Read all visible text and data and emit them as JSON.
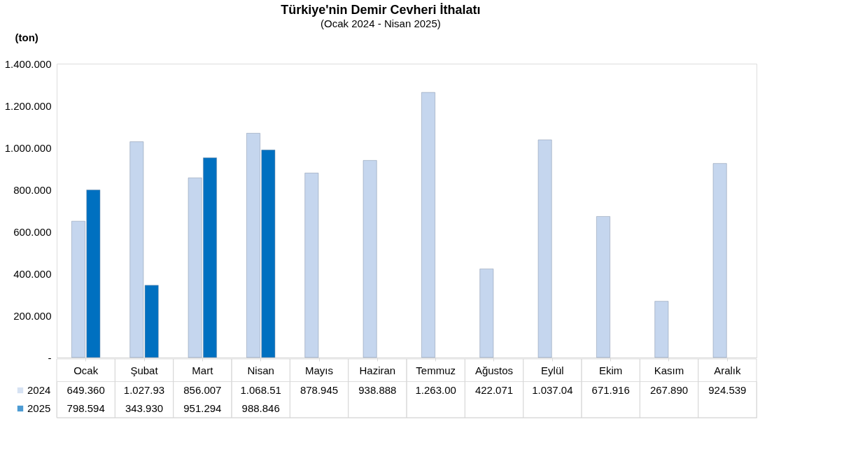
{
  "chart_data": {
    "type": "bar",
    "title": "Türkiye'nin Demir Cevheri İthalatı",
    "subtitle": "(Ocak 2024 - Nisan 2025)",
    "ylabel": "(ton)",
    "categories": [
      "Ocak",
      "Şubat",
      "Mart",
      "Nisan",
      "Mayıs",
      "Haziran",
      "Temmuz",
      "Ağustos",
      "Eylül",
      "Ekim",
      "Kasım",
      "Aralık"
    ],
    "series": [
      {
        "name": "2024",
        "color": "#c5d6ee",
        "values": [
          649360,
          1027930,
          856007,
          1068510,
          878945,
          938888,
          1263000,
          422071,
          1037040,
          671916,
          267890,
          924539
        ],
        "value_labels": [
          "649.360",
          "1.027.93",
          "856.007",
          "1.068.51",
          "878.945",
          "938.888",
          "1.263.00",
          "422.071",
          "1.037.04",
          "671.916",
          "267.890",
          "924.539"
        ]
      },
      {
        "name": "2025",
        "color": "#0070c0",
        "values": [
          798594,
          343930,
          951294,
          988846,
          null,
          null,
          null,
          null,
          null,
          null,
          null,
          null
        ],
        "value_labels": [
          "798.594",
          "343.930",
          "951.294",
          "988.846",
          null,
          null,
          null,
          null,
          null,
          null,
          null,
          null
        ]
      }
    ],
    "ylim": [
      0,
      1400000
    ],
    "yticks": [
      {
        "value": 0,
        "label": "-"
      },
      {
        "value": 200000,
        "label": "200.000"
      },
      {
        "value": 400000,
        "label": "400.000"
      },
      {
        "value": 600000,
        "label": "600.000"
      },
      {
        "value": 800000,
        "label": "800.000"
      },
      {
        "value": 1000000,
        "label": "1.000.000"
      },
      {
        "value": 1200000,
        "label": "1.200.000"
      },
      {
        "value": 1400000,
        "label": "1.400.000"
      }
    ],
    "legend": "bottom"
  }
}
